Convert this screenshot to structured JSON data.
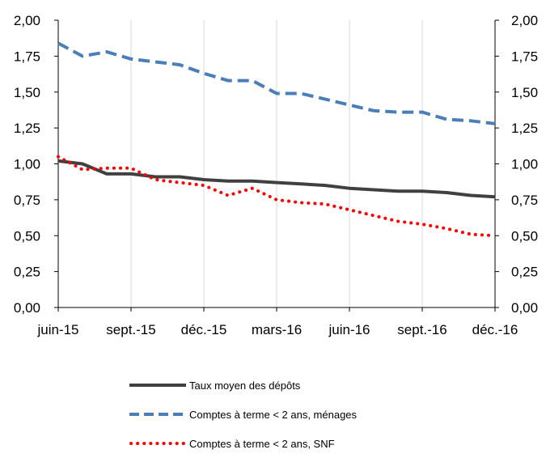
{
  "chart_data": {
    "type": "line",
    "x": [
      "2015-06",
      "2015-07",
      "2015-08",
      "2015-09",
      "2015-10",
      "2015-11",
      "2015-12",
      "2016-01",
      "2016-02",
      "2016-03",
      "2016-04",
      "2016-05",
      "2016-06",
      "2016-07",
      "2016-08",
      "2016-09",
      "2016-10",
      "2016-11",
      "2016-12"
    ],
    "x_tick_labels": [
      "juin-15",
      "sept.-15",
      "déc.-15",
      "mars-16",
      "juin-16",
      "sept.-16",
      "déc.-16"
    ],
    "y_tick_labels": [
      "0,00",
      "0,25",
      "0,50",
      "0,75",
      "1,00",
      "1,25",
      "1,50",
      "1,75",
      "2,00"
    ],
    "ylim": [
      0,
      2
    ],
    "y_axis_right": true,
    "grid": "vertical",
    "legend_position": "bottom",
    "series": [
      {
        "name": "Taux moyen des dépôts",
        "style": "solid",
        "color": "#404040",
        "values": [
          1.02,
          1.0,
          0.93,
          0.93,
          0.91,
          0.91,
          0.89,
          0.88,
          0.88,
          0.87,
          0.86,
          0.85,
          0.83,
          0.82,
          0.81,
          0.81,
          0.8,
          0.78,
          0.77
        ]
      },
      {
        "name": "Comptes à terme < 2 ans, ménages",
        "style": "dashed",
        "color": "#4a7ebb",
        "values": [
          1.84,
          1.75,
          1.78,
          1.73,
          1.71,
          1.69,
          1.63,
          1.58,
          1.58,
          1.49,
          1.49,
          1.45,
          1.41,
          1.37,
          1.36,
          1.36,
          1.31,
          1.3,
          1.28
        ]
      },
      {
        "name": "Comptes à terme < 2 ans, SNF",
        "style": "dotted",
        "color": "#ff0000",
        "values": [
          1.05,
          0.96,
          0.97,
          0.97,
          0.89,
          0.87,
          0.85,
          0.78,
          0.83,
          0.75,
          0.73,
          0.72,
          0.68,
          0.64,
          0.6,
          0.58,
          0.55,
          0.51,
          0.5
        ]
      }
    ]
  }
}
